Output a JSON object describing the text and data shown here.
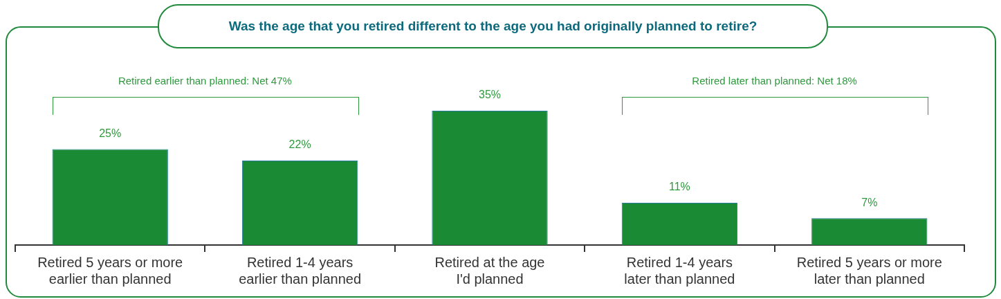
{
  "chart_data": {
    "type": "bar",
    "title": "Was the age that you retired different to the age you had originally planned to retire?",
    "categories": [
      "Retired 5 years or more\nearlier than planned",
      "Retired 1-4 years\nearlier than planned",
      "Retired at the age\nI'd planned",
      "Retired 1-4 years\nlater than planned",
      "Retired 5 years or more\nlater than planned"
    ],
    "values": [
      25,
      22,
      35,
      11,
      7
    ],
    "value_labels": [
      "25%",
      "22%",
      "35%",
      "11%",
      "7%"
    ],
    "color": "#1a8a35",
    "annotations": [
      "Retired earlier than planned: Net 47%",
      "Retired later than planned: Net 18%"
    ],
    "grid": false,
    "legend": false
  }
}
